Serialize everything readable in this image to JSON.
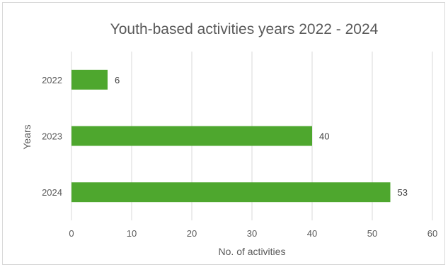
{
  "chart_data": {
    "type": "bar",
    "orientation": "horizontal",
    "title": "Youth-based activities years 2022 - 2024",
    "xlabel": "No. of activities",
    "ylabel": "Years",
    "categories": [
      "2022",
      "2023",
      "2024"
    ],
    "values": [
      6,
      40,
      53
    ],
    "data_labels": [
      "6",
      "40",
      "53"
    ],
    "xlim": [
      0,
      60
    ],
    "x_ticks": [
      "0",
      "10",
      "20",
      "30",
      "40",
      "50",
      "60"
    ],
    "grid": "vertical",
    "legend": "none",
    "bar_color": "#4ea72e",
    "grid_color": "#d9d9d9"
  }
}
